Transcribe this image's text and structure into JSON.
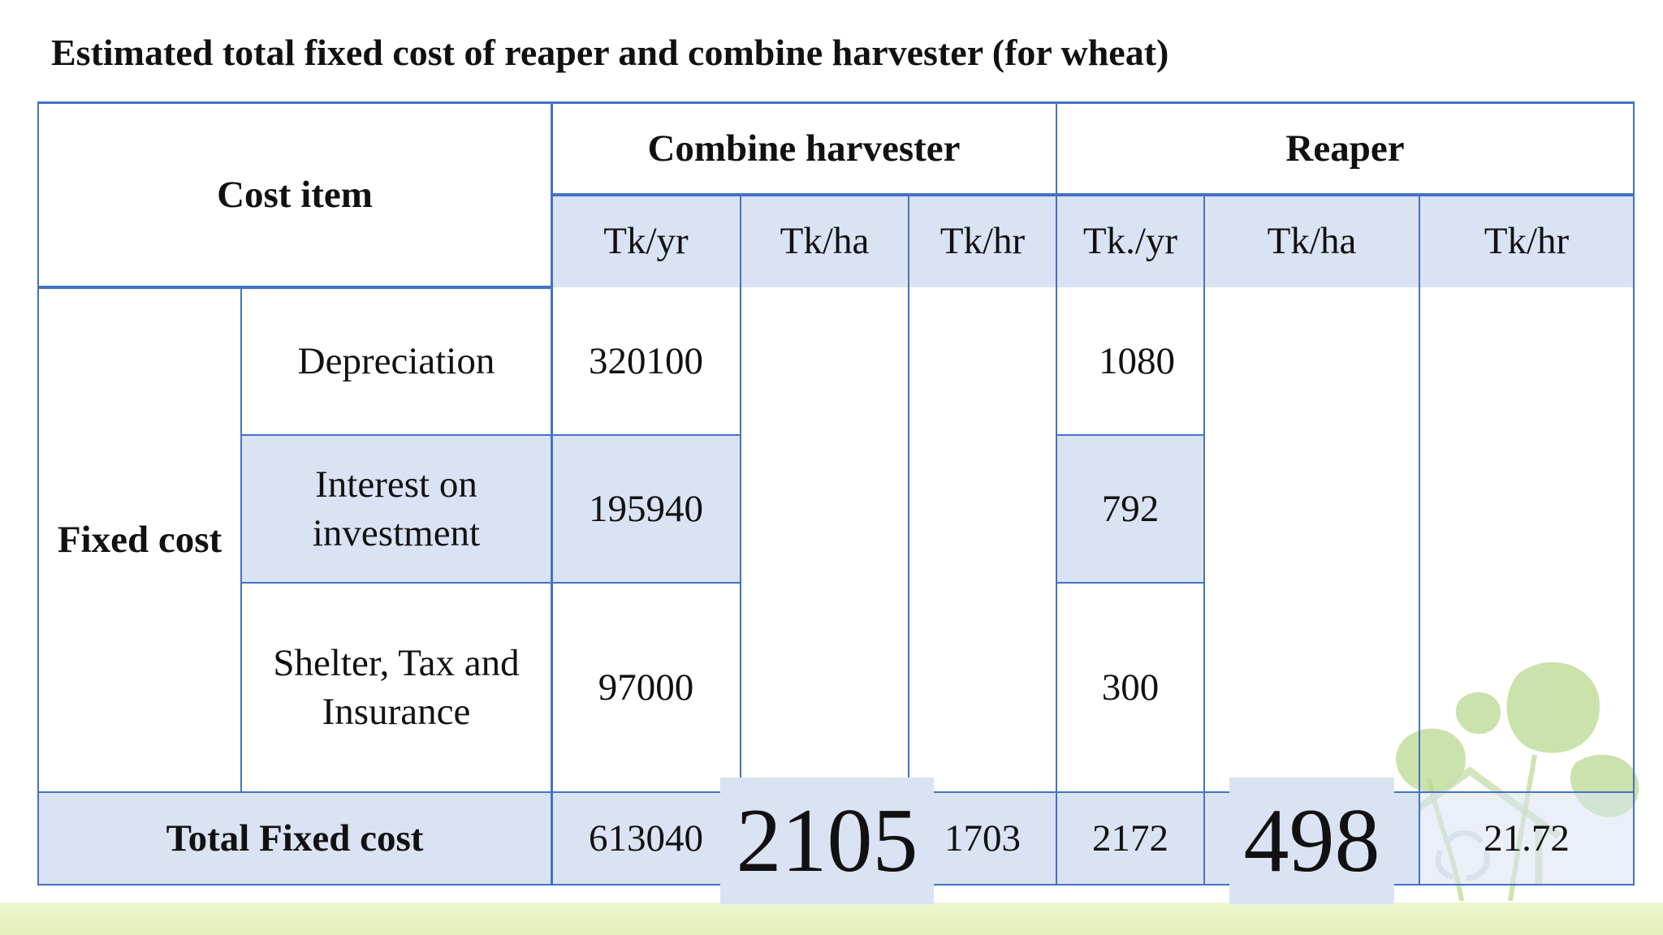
{
  "title": "Estimated total fixed cost of reaper and combine harvester (for wheat)",
  "colors": {
    "border": "#4472c4",
    "shade": "#dae3f3",
    "band": "#e3f0b8"
  },
  "table": {
    "cost_item_header": "Cost item",
    "combine_header": "Combine harvester",
    "reaper_header": "Reaper",
    "units": {
      "combine_yr": "Tk/yr",
      "combine_ha": "Tk/ha",
      "combine_hr": "Tk/hr",
      "reaper_yr": "Tk./yr",
      "reaper_ha": "Tk/ha",
      "reaper_hr": "Tk/hr"
    },
    "group_label": "Fixed cost",
    "rows": [
      {
        "item": "Depreciation",
        "combine_yr": "320100",
        "reaper_yr": "1080"
      },
      {
        "item": "Interest on investment",
        "combine_yr": "195940",
        "reaper_yr": "792"
      },
      {
        "item": "Shelter, Tax and Insurance",
        "combine_yr": "97000",
        "reaper_yr": "300"
      }
    ],
    "total": {
      "label": "Total Fixed cost",
      "combine_yr": "613040",
      "combine_ha": "2105",
      "combine_hr": "1703",
      "reaper_yr": "2172",
      "reaper_ha": "498",
      "reaper_hr": "21.72"
    }
  }
}
